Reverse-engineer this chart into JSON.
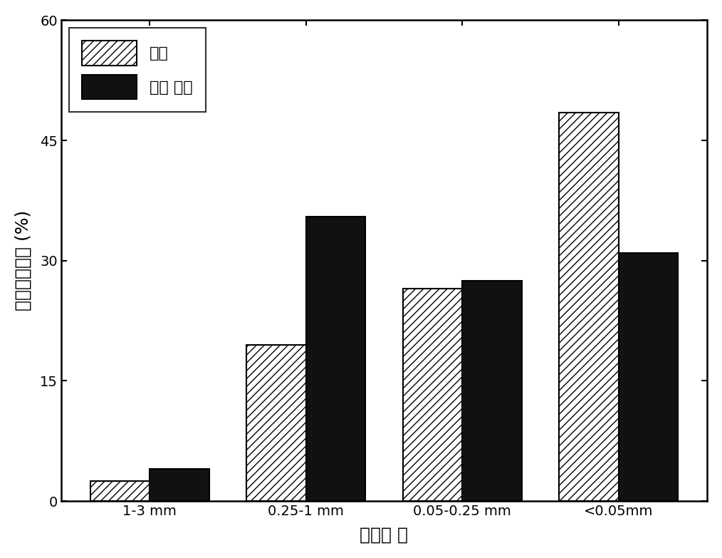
{
  "categories": [
    "1-3 mm",
    "0.25-1 mm",
    "0.05-0.25 mm",
    "<0.05mm"
  ],
  "control_values": [
    2.5,
    19.5,
    26.5,
    48.5
  ],
  "treatment_values": [
    4.0,
    35.5,
    27.5,
    31.0
  ],
  "ylabel": "水稳性团聚体 (%)",
  "xlabel": "尺寸分 布",
  "ylim": [
    0,
    60
  ],
  "yticks": [
    0,
    15,
    30,
    45,
    60
  ],
  "legend_control": "对照",
  "legend_treatment": "加保 水剂",
  "bar_width": 0.38,
  "control_color": "white",
  "treatment_color": "#111111",
  "hatch_pattern": "///",
  "edge_color": "black",
  "background_color": "white",
  "label_fontsize": 18,
  "tick_fontsize": 14,
  "legend_fontsize": 16
}
